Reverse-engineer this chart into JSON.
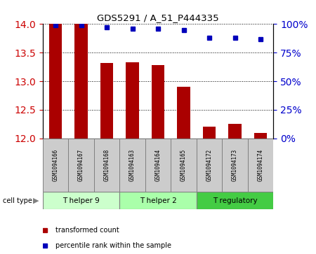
{
  "title": "GDS5291 / A_51_P444335",
  "samples": [
    "GSM1094166",
    "GSM1094167",
    "GSM1094168",
    "GSM1094163",
    "GSM1094164",
    "GSM1094165",
    "GSM1094172",
    "GSM1094173",
    "GSM1094174"
  ],
  "transformed_count": [
    14.0,
    14.0,
    13.32,
    13.33,
    13.28,
    12.9,
    12.21,
    12.25,
    12.1
  ],
  "percentile_rank": [
    99,
    99,
    97,
    96,
    96,
    95,
    88,
    88,
    87
  ],
  "ylim_left": [
    12.0,
    14.0
  ],
  "ylim_right": [
    0,
    100
  ],
  "yticks_left": [
    12.0,
    12.5,
    13.0,
    13.5,
    14.0
  ],
  "yticks_right": [
    0,
    25,
    50,
    75,
    100
  ],
  "cell_type_groups": [
    {
      "label": "T helper 9",
      "start": 0,
      "end": 3,
      "color": "#ccffcc"
    },
    {
      "label": "T helper 2",
      "start": 3,
      "end": 6,
      "color": "#aaffaa"
    },
    {
      "label": "T regulatory",
      "start": 6,
      "end": 9,
      "color": "#44cc44"
    }
  ],
  "bar_color": "#aa0000",
  "dot_color": "#0000bb",
  "bar_width": 0.5,
  "bg_color": "#ffffff",
  "tick_label_color_left": "#cc0000",
  "tick_label_color_right": "#0000cc",
  "sample_box_color": "#cccccc",
  "legend_bar_label": "transformed count",
  "legend_dot_label": "percentile rank within the sample"
}
